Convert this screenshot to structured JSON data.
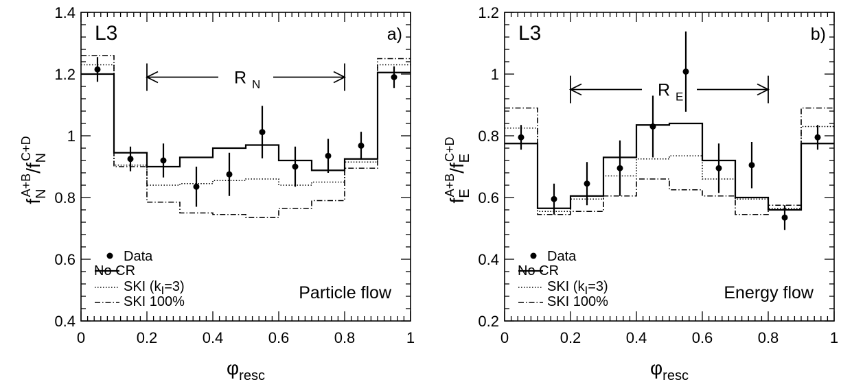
{
  "chart_data": [
    {
      "type": "line",
      "panel_label": "a)",
      "experiment_label": "L3",
      "flow_label": "Particle flow",
      "range_label": "R",
      "range_label_sub": "N",
      "range": [
        0.2,
        0.8
      ],
      "ylabel": {
        "base": "f",
        "sub": "N",
        "sup": "A+B",
        "slash": "/",
        "base2": "f",
        "sub2": "N",
        "sup2": "C+D"
      },
      "xlabel": {
        "base": "φ",
        "sub": "resc"
      },
      "xlim": [
        0,
        1
      ],
      "ylim": [
        0.4,
        1.4
      ],
      "xticks": [
        "0",
        "0.2",
        "0.4",
        "0.6",
        "0.8",
        "1"
      ],
      "yticks": [
        "0.4",
        "0.6",
        "0.8",
        "1",
        "1.2",
        "1.4"
      ],
      "bin_edges": [
        0,
        0.1,
        0.2,
        0.3,
        0.4,
        0.5,
        0.6,
        0.7,
        0.8,
        0.9,
        1.0
      ],
      "series": [
        {
          "name": "Data",
          "style": "points",
          "x": [
            0.05,
            0.15,
            0.25,
            0.35,
            0.45,
            0.55,
            0.65,
            0.75,
            0.85,
            0.95
          ],
          "values": [
            1.215,
            0.925,
            0.92,
            0.835,
            0.875,
            1.012,
            0.9,
            0.935,
            0.968,
            1.19
          ],
          "errors": [
            0.04,
            0.04,
            0.055,
            0.065,
            0.07,
            0.085,
            0.065,
            0.055,
            0.045,
            0.035
          ]
        },
        {
          "name": "No CR",
          "style": "solid",
          "values": [
            1.2,
            0.945,
            0.9,
            0.93,
            0.96,
            0.97,
            0.92,
            0.888,
            0.925,
            1.205
          ]
        },
        {
          "name": "SKI (k_I=3)",
          "style": "dotted",
          "values": [
            1.23,
            0.905,
            0.84,
            0.845,
            0.855,
            0.86,
            0.84,
            0.85,
            0.915,
            1.23
          ]
        },
        {
          "name": "SKI 100%",
          "style": "dashdot",
          "values": [
            1.26,
            0.9,
            0.785,
            0.75,
            0.745,
            0.735,
            0.765,
            0.79,
            0.895,
            1.25
          ]
        }
      ],
      "legend": [
        "Data",
        "No CR",
        "SKI (k_I=3)",
        "SKI 100%"
      ],
      "legend_text": {
        "data": "Data",
        "nocr": "No CR",
        "ski_pre": "SKI (k",
        "ski_sub": "I",
        "ski_post": "=3)",
        "ski100": "SKI 100%"
      }
    },
    {
      "type": "line",
      "panel_label": "b)",
      "experiment_label": "L3",
      "flow_label": "Energy flow",
      "range_label": "R",
      "range_label_sub": "E",
      "range": [
        0.2,
        0.8
      ],
      "ylabel": {
        "base": "f",
        "sub": "E",
        "sup": "A+B",
        "slash": "/",
        "base2": "f",
        "sub2": "E",
        "sup2": "C+D"
      },
      "xlabel": {
        "base": "φ",
        "sub": "resc"
      },
      "xlim": [
        0,
        1
      ],
      "ylim": [
        0.2,
        1.2
      ],
      "xticks": [
        "0",
        "0.2",
        "0.4",
        "0.6",
        "0.8",
        "1"
      ],
      "yticks": [
        "0.2",
        "0.4",
        "0.6",
        "0.8",
        "1",
        "1.2"
      ],
      "bin_edges": [
        0,
        0.1,
        0.2,
        0.3,
        0.4,
        0.5,
        0.6,
        0.7,
        0.8,
        0.9,
        1.0
      ],
      "series": [
        {
          "name": "Data",
          "style": "points",
          "x": [
            0.05,
            0.15,
            0.25,
            0.35,
            0.45,
            0.55,
            0.65,
            0.75,
            0.85,
            0.95
          ],
          "values": [
            0.795,
            0.595,
            0.645,
            0.695,
            0.83,
            1.008,
            0.695,
            0.705,
            0.535,
            0.795
          ],
          "errors": [
            0.04,
            0.05,
            0.07,
            0.09,
            0.1,
            0.13,
            0.08,
            0.075,
            0.04,
            0.04
          ]
        },
        {
          "name": "No CR",
          "style": "solid",
          "values": [
            0.775,
            0.565,
            0.605,
            0.73,
            0.835,
            0.84,
            0.72,
            0.6,
            0.56,
            0.775
          ]
        },
        {
          "name": "SKI (k_I=3)",
          "style": "dotted",
          "values": [
            0.825,
            0.555,
            0.595,
            0.67,
            0.725,
            0.735,
            0.66,
            0.595,
            0.565,
            0.83
          ]
        },
        {
          "name": "SKI 100%",
          "style": "dashdot",
          "values": [
            0.89,
            0.545,
            0.555,
            0.605,
            0.66,
            0.625,
            0.605,
            0.545,
            0.575,
            0.89
          ]
        }
      ],
      "legend": [
        "Data",
        "No CR",
        "SKI (k_I=3)",
        "SKI 100%"
      ],
      "legend_text": {
        "data": "Data",
        "nocr": "No CR",
        "ski_pre": "SKI (k",
        "ski_sub": "I",
        "ski_post": "=3)",
        "ski100": "SKI 100%"
      }
    }
  ]
}
